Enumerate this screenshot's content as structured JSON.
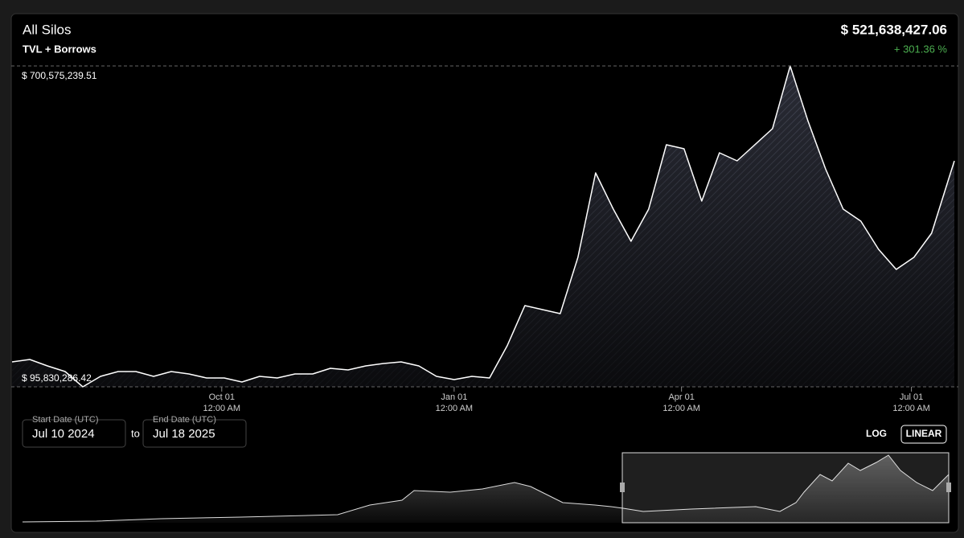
{
  "chart_data": {
    "type": "area",
    "title": "All Silos",
    "subtitle": "TVL + Borrows",
    "current_value": "$ 521,638,427.06",
    "change": "+ 301.36 %",
    "color": "#ffffff",
    "change_color": "#4caf50",
    "log_scale": false,
    "x": [
      "2024-07-10",
      "2024-07-17",
      "2024-07-24",
      "2024-07-31",
      "2024-08-07",
      "2024-08-14",
      "2024-08-21",
      "2024-08-28",
      "2024-09-04",
      "2024-09-11",
      "2024-09-18",
      "2024-09-25",
      "2024-10-02",
      "2024-10-09",
      "2024-10-16",
      "2024-10-23",
      "2024-10-30",
      "2024-11-06",
      "2024-11-13",
      "2024-11-20",
      "2024-11-27",
      "2024-12-04",
      "2024-12-11",
      "2024-12-18",
      "2024-12-25",
      "2025-01-01",
      "2025-01-08",
      "2025-01-15",
      "2025-01-22",
      "2025-01-29",
      "2025-02-05",
      "2025-02-12",
      "2025-02-19",
      "2025-02-26",
      "2025-03-05",
      "2025-03-12",
      "2025-03-19",
      "2025-03-26",
      "2025-04-02",
      "2025-04-09",
      "2025-04-16",
      "2025-04-23",
      "2025-04-30",
      "2025-05-07",
      "2025-05-14",
      "2025-05-21",
      "2025-05-28",
      "2025-06-04",
      "2025-06-11",
      "2025-06-18",
      "2025-06-25",
      "2025-07-02",
      "2025-07-09",
      "2025-07-16",
      "2025-07-18"
    ],
    "values": [
      142820000,
      147360000,
      135240000,
      124630000,
      95830286.42,
      115530000,
      124630000,
      124630000,
      115530000,
      124630000,
      120080000,
      112500000,
      112500000,
      104920000,
      115530000,
      112500000,
      120080000,
      120080000,
      130690000,
      127660000,
      135240000,
      139790000,
      142820000,
      135240000,
      115530000,
      109470000,
      115530000,
      112500000,
      173130000,
      248920000,
      241340000,
      233760000,
      339860000,
      499010000,
      430800000,
      370170000,
      430800000,
      552060000,
      544480000,
      445960000,
      536900000,
      521740000,
      552060000,
      582370000,
      700575239.51,
      597530000,
      506580000,
      430800000,
      408060000,
      355010000,
      317120000,
      339860000,
      385330000,
      491430000,
      521638427.06
    ],
    "xlim": [
      "2024-07-10",
      "2025-07-18"
    ],
    "xticks": [
      {
        "value": "2024-10-01",
        "label": "Oct 01",
        "time": "12:00 AM"
      },
      {
        "value": "2025-01-01",
        "label": "Jan 01",
        "time": "12:00 AM"
      },
      {
        "value": "2025-04-01",
        "label": "Apr 01",
        "time": "12:00 AM"
      },
      {
        "value": "2025-07-01",
        "label": "Jul 01",
        "time": "12:00 AM"
      }
    ],
    "ylim": [
      95830286.42,
      700575239.51
    ],
    "yticks": [
      {
        "value": 95830286.42,
        "label": "$ 95,830,286.42"
      },
      {
        "value": 700575239.51,
        "label": "$ 700,575,239.51"
      }
    ],
    "controls": {
      "start_label": "Start Date (UTC)",
      "start_value": "Jul 10 2024",
      "separator": "to",
      "end_label": "End Date (UTC)",
      "end_value": "Jul 18 2025",
      "scale_buttons": [
        "LOG",
        "LINEAR"
      ]
    }
  }
}
